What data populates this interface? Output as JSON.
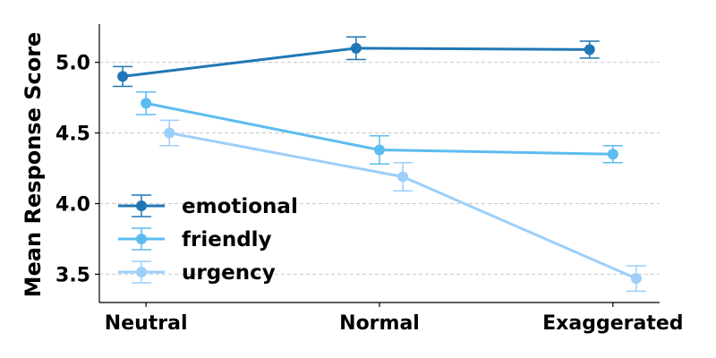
{
  "chart_data": {
    "type": "line",
    "title": "",
    "xlabel": "",
    "ylabel": "Mean Response Score",
    "categories": [
      "Neutral",
      "Normal",
      "Exaggerated"
    ],
    "ylim": [
      3.3,
      5.27
    ],
    "yticks": [
      3.5,
      4.0,
      4.5,
      5.0
    ],
    "ytick_labels": [
      "3.5",
      "4.0",
      "4.5",
      "5.0"
    ],
    "grid": true,
    "legend_position": "lower-left",
    "series": [
      {
        "name": "emotional",
        "color": "#1f77b4",
        "x_positions": [
          -0.1,
          0.9,
          1.9
        ],
        "values": [
          4.9,
          5.1,
          5.09
        ],
        "errors": [
          0.07,
          0.08,
          0.06
        ]
      },
      {
        "name": "friendly",
        "color": "#5cbcf0",
        "x_positions": [
          0.0,
          1.0,
          2.0
        ],
        "values": [
          4.71,
          4.38,
          4.35
        ],
        "errors": [
          0.08,
          0.1,
          0.06
        ]
      },
      {
        "name": "urgency",
        "color": "#9ccffa",
        "x_positions": [
          0.1,
          1.1,
          2.1
        ],
        "values": [
          4.5,
          4.19,
          3.47
        ],
        "errors": [
          0.09,
          0.1,
          0.09
        ]
      }
    ]
  }
}
